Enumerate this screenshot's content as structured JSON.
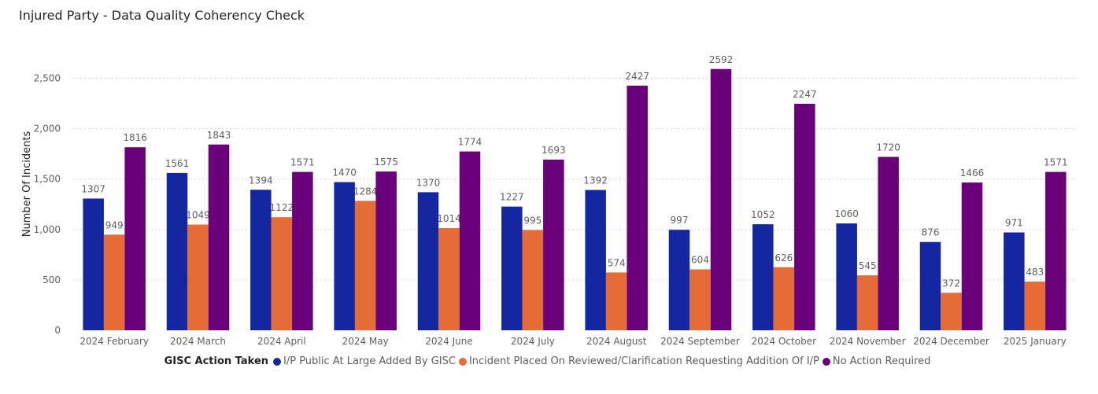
{
  "chart_data": {
    "type": "bar",
    "title": "Injured Party - Data Quality Coherency Check",
    "ylabel": "Number Of Incidents",
    "xlabel": "",
    "ylim": [
      0,
      2750
    ],
    "yticks": [
      0,
      500,
      1000,
      1500,
      2000,
      2500
    ],
    "ytick_labels": [
      "0",
      "500",
      "1,000",
      "1,500",
      "2,000",
      "2,500"
    ],
    "grid": true,
    "categories": [
      "2024 February",
      "2024 March",
      "2024 April",
      "2024 May",
      "2024 June",
      "2024 July",
      "2024 August",
      "2024 September",
      "2024 October",
      "2024 November",
      "2024 December",
      "2025 January"
    ],
    "legend_title": "GISC Action Taken",
    "legend_position": "bottom",
    "series": [
      {
        "name": "I/P Public At Large Added By GISC",
        "color": "#1427a0",
        "values": [
          1307,
          1561,
          1394,
          1470,
          1370,
          1227,
          1392,
          997,
          1052,
          1060,
          876,
          971
        ]
      },
      {
        "name": "Incident Placed On Reviewed/Clarification Requesting Addition Of I/P",
        "color": "#e66c37",
        "values": [
          949,
          1049,
          1122,
          1284,
          1014,
          995,
          574,
          604,
          626,
          545,
          372,
          483
        ]
      },
      {
        "name": "No Action Required",
        "color": "#6b007b",
        "values": [
          1816,
          1843,
          1571,
          1575,
          1774,
          1693,
          2427,
          2592,
          2247,
          1720,
          1466,
          1571
        ]
      }
    ]
  }
}
